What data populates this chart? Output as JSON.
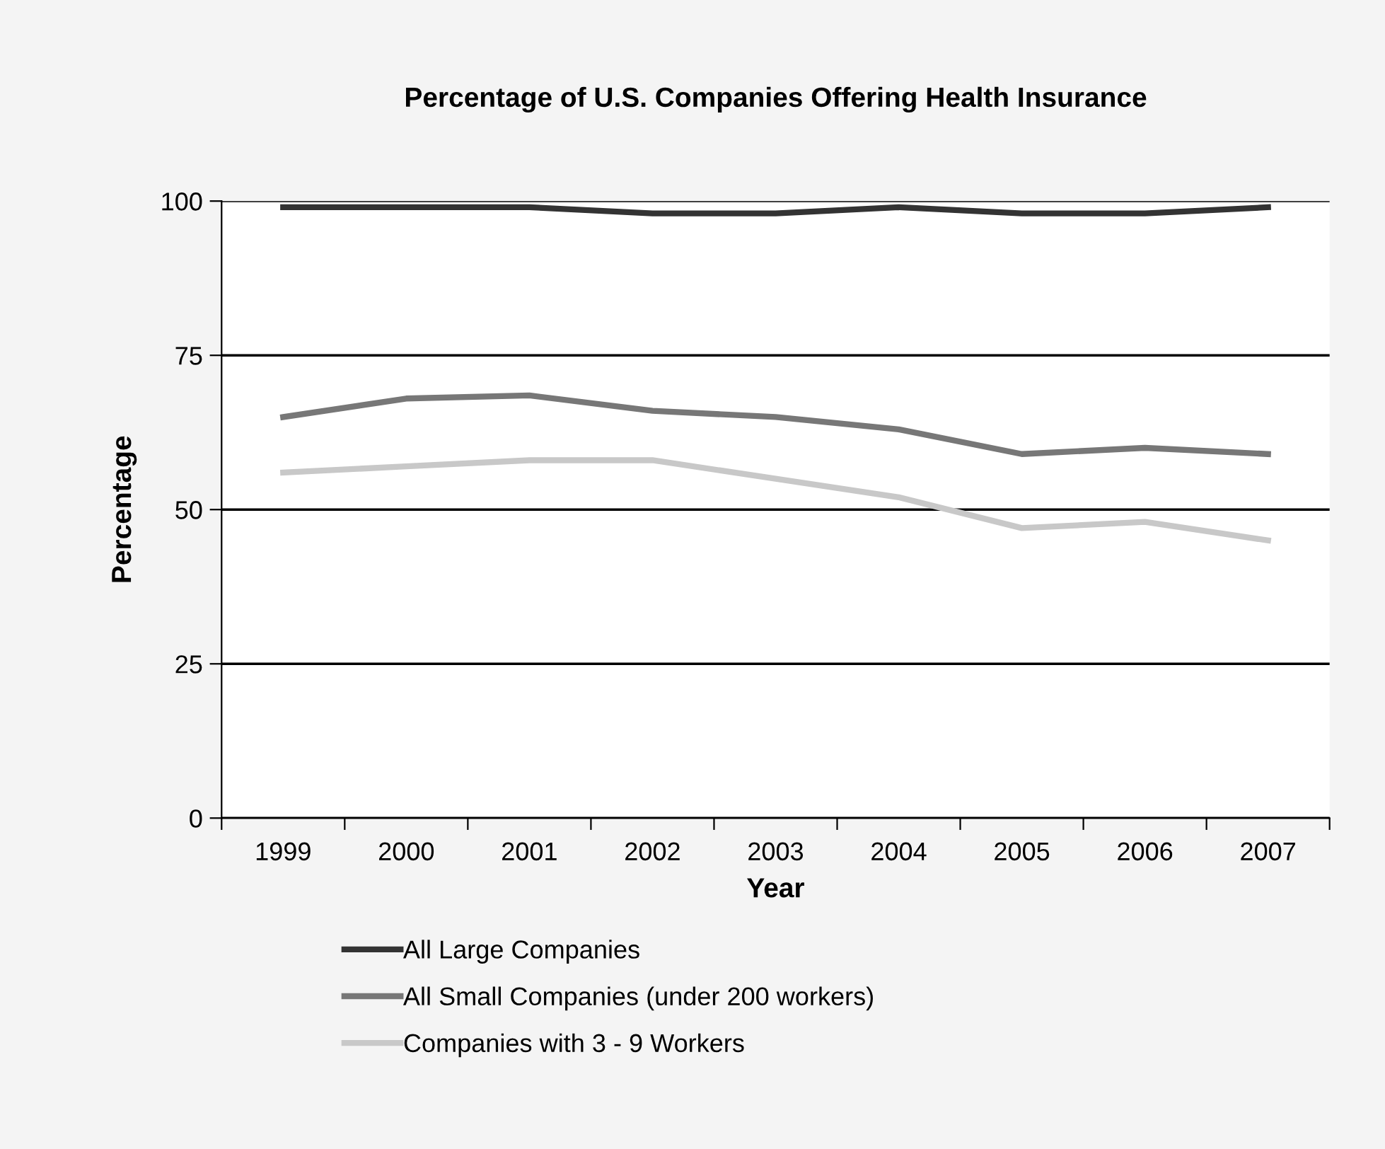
{
  "chart_data": {
    "type": "line",
    "title": "Percentage of U.S. Companies Offering Health Insurance",
    "xlabel": "Year",
    "ylabel": "Percentage",
    "categories": [
      "1999",
      "2000",
      "2001",
      "2002",
      "2003",
      "2004",
      "2005",
      "2006",
      "2007"
    ],
    "series": [
      {
        "name": "All Large Companies",
        "color": "#333333",
        "values": [
          99,
          99,
          99,
          98,
          98,
          99,
          98,
          98,
          99
        ]
      },
      {
        "name": "All Small Companies (under 200 workers)",
        "color": "#777777",
        "values": [
          65,
          68,
          68.5,
          66,
          65,
          63,
          59,
          60,
          59
        ]
      },
      {
        "name": "Companies with 3 - 9 Workers",
        "color": "#c8c8c8",
        "values": [
          56,
          57,
          58,
          58,
          55,
          52,
          47,
          48,
          45
        ]
      }
    ],
    "ylim": [
      0,
      100
    ],
    "yticks": [
      0,
      25,
      50,
      75,
      100
    ],
    "grid": "y",
    "legend": "bottom",
    "marker": "none",
    "line_style": "solid"
  }
}
